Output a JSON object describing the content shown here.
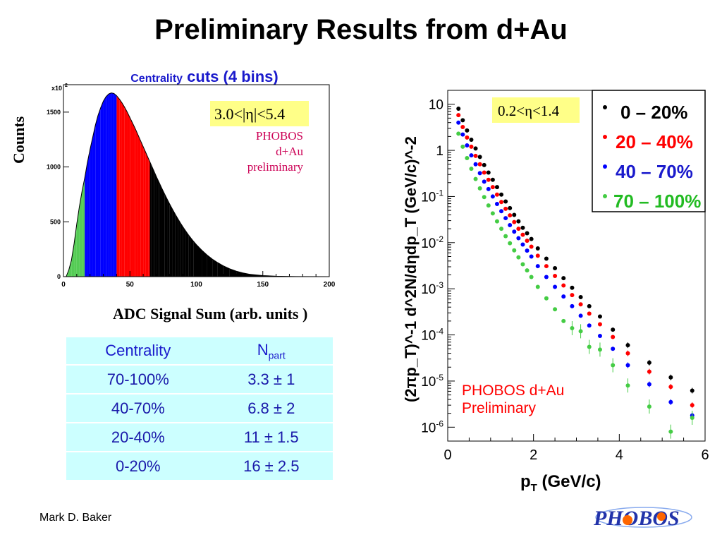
{
  "title": "Preliminary Results from d+Au",
  "histogram": {
    "title_small": "Centrality",
    "title_big": "cuts (4 bins)",
    "ylabel": "Counts",
    "xlabel": "ADC Signal Sum (arb. units )",
    "y_multiplier": "x10",
    "y_multiplier_exp": "2",
    "eta_cut": "3.0<|η|<5.4",
    "note_lines": [
      "PHOBOS",
      "d+Au",
      "preliminary"
    ]
  },
  "table": {
    "headers": [
      "Centrality",
      "N"
    ],
    "header_sub": "part",
    "rows": [
      [
        "70-100%",
        "3.3 ± 1"
      ],
      [
        "40-70%",
        "6.8 ± 2"
      ],
      [
        "20-40%",
        "11 ± 1.5"
      ],
      [
        "0-20%",
        "16 ± 2.5"
      ]
    ]
  },
  "spectrum": {
    "eta_cut": "0.2<η<1.4",
    "watermark": [
      "PHOBOS d+Au",
      "Preliminary"
    ],
    "xlabel": "p",
    "xlabel_sub": "T",
    "xlabel_rest": " (GeV/c)",
    "ylabel": "(2πp_T)^-1 d^2N/dηdp_T (GeV/c)^-2"
  },
  "footer": {
    "author": "Mark D. Baker",
    "logo_text": "PHOBOS"
  },
  "chart_data": [
    {
      "type": "bar",
      "title": "Centrality cuts (4 bins)",
      "xlabel": "ADC Signal Sum (arb. units )",
      "ylabel": "Counts",
      "xlim": [
        0,
        200
      ],
      "ylim": [
        0,
        1750
      ],
      "x_ticks": [
        0,
        50,
        100,
        150,
        200
      ],
      "y_ticks": [
        0,
        500,
        1000,
        1500
      ],
      "bins": [
        {
          "x": 2,
          "y": 0
        },
        {
          "x": 4,
          "y": 60
        },
        {
          "x": 6,
          "y": 150
        },
        {
          "x": 8,
          "y": 300
        },
        {
          "x": 10,
          "y": 480
        },
        {
          "x": 12,
          "y": 640
        },
        {
          "x": 14,
          "y": 780
        },
        {
          "x": 16,
          "y": 900
        },
        {
          "x": 18,
          "y": 1040
        },
        {
          "x": 20,
          "y": 1160
        },
        {
          "x": 22,
          "y": 1270
        },
        {
          "x": 24,
          "y": 1380
        },
        {
          "x": 26,
          "y": 1470
        },
        {
          "x": 28,
          "y": 1540
        },
        {
          "x": 30,
          "y": 1600
        },
        {
          "x": 32,
          "y": 1640
        },
        {
          "x": 34,
          "y": 1665
        },
        {
          "x": 36,
          "y": 1675
        },
        {
          "x": 38,
          "y": 1670
        },
        {
          "x": 40,
          "y": 1650
        },
        {
          "x": 42,
          "y": 1620
        },
        {
          "x": 44,
          "y": 1585
        },
        {
          "x": 46,
          "y": 1545
        },
        {
          "x": 48,
          "y": 1500
        },
        {
          "x": 50,
          "y": 1450
        },
        {
          "x": 52,
          "y": 1400
        },
        {
          "x": 54,
          "y": 1350
        },
        {
          "x": 56,
          "y": 1295
        },
        {
          "x": 58,
          "y": 1240
        },
        {
          "x": 60,
          "y": 1185
        },
        {
          "x": 62,
          "y": 1130
        },
        {
          "x": 64,
          "y": 1075
        },
        {
          "x": 66,
          "y": 1020
        },
        {
          "x": 68,
          "y": 965
        },
        {
          "x": 70,
          "y": 910
        },
        {
          "x": 72,
          "y": 858
        },
        {
          "x": 74,
          "y": 806
        },
        {
          "x": 76,
          "y": 756
        },
        {
          "x": 78,
          "y": 708
        },
        {
          "x": 80,
          "y": 660
        },
        {
          "x": 82,
          "y": 615
        },
        {
          "x": 84,
          "y": 572
        },
        {
          "x": 86,
          "y": 530
        },
        {
          "x": 88,
          "y": 490
        },
        {
          "x": 90,
          "y": 452
        },
        {
          "x": 92,
          "y": 416
        },
        {
          "x": 94,
          "y": 382
        },
        {
          "x": 96,
          "y": 350
        },
        {
          "x": 98,
          "y": 320
        },
        {
          "x": 100,
          "y": 292
        },
        {
          "x": 104,
          "y": 242
        },
        {
          "x": 108,
          "y": 198
        },
        {
          "x": 112,
          "y": 160
        },
        {
          "x": 116,
          "y": 128
        },
        {
          "x": 120,
          "y": 100
        },
        {
          "x": 125,
          "y": 72
        },
        {
          "x": 130,
          "y": 50
        },
        {
          "x": 135,
          "y": 34
        },
        {
          "x": 140,
          "y": 22
        },
        {
          "x": 150,
          "y": 10
        },
        {
          "x": 160,
          "y": 4
        },
        {
          "x": 175,
          "y": 1
        },
        {
          "x": 200,
          "y": 0
        }
      ],
      "bands": [
        {
          "name": "70-100%",
          "x_from": 0,
          "x_to": 16,
          "color": "#55cc55"
        },
        {
          "name": "40-70%",
          "x_from": 16,
          "x_to": 40,
          "color": "#0000ff"
        },
        {
          "name": "20-40%",
          "x_from": 40,
          "x_to": 65,
          "color": "#ff0000"
        },
        {
          "name": "0-20%",
          "x_from": 65,
          "x_to": 200,
          "color": "#000000"
        }
      ],
      "annotations": [
        "3.0<|η|<5.4",
        "PHOBOS",
        "d+Au",
        "preliminary"
      ],
      "legend": "none"
    },
    {
      "type": "scatter",
      "log_y": true,
      "xlim": [
        0,
        6
      ],
      "ylim": [
        5e-07,
        20
      ],
      "x_ticks": [
        0,
        2,
        4,
        6
      ],
      "y_ticks": [
        1e-06,
        1e-05,
        0.0001,
        0.001,
        0.01,
        0.1,
        1,
        10
      ],
      "xlabel": "p_T (GeV/c)",
      "ylabel": "(2πp_T)^-1 d^2N/dηdp_T (GeV/c)^-2",
      "legend_position": "top-right",
      "series": [
        {
          "name": "0 – 20%",
          "color": "#000000",
          "x": [
            0.25,
            0.35,
            0.45,
            0.55,
            0.65,
            0.75,
            0.85,
            0.95,
            1.05,
            1.15,
            1.25,
            1.35,
            1.45,
            1.55,
            1.65,
            1.75,
            1.85,
            1.95,
            2.1,
            2.3,
            2.5,
            2.7,
            2.9,
            3.1,
            3.3,
            3.55,
            3.85,
            4.2,
            4.7,
            5.2,
            5.7
          ],
          "y": [
            8,
            4.5,
            2.7,
            1.7,
            1.1,
            0.72,
            0.48,
            0.33,
            0.23,
            0.16,
            0.11,
            0.078,
            0.056,
            0.04,
            0.029,
            0.021,
            0.016,
            0.012,
            0.0075,
            0.0045,
            0.0028,
            0.0017,
            0.00105,
            0.00066,
            0.00042,
            0.00025,
            0.00013,
            6e-05,
            2.5e-05,
            1.2e-05,
            6.2e-06
          ]
        },
        {
          "name": "20 – 40%",
          "color": "#ff0000",
          "x": [
            0.25,
            0.35,
            0.45,
            0.55,
            0.65,
            0.75,
            0.85,
            0.95,
            1.05,
            1.15,
            1.25,
            1.35,
            1.45,
            1.55,
            1.65,
            1.75,
            1.85,
            1.95,
            2.1,
            2.3,
            2.5,
            2.7,
            2.9,
            3.1,
            3.3,
            3.55,
            3.85,
            4.2,
            4.7,
            5.2,
            5.7
          ],
          "y": [
            5.8,
            3.2,
            1.9,
            1.2,
            0.76,
            0.5,
            0.33,
            0.23,
            0.16,
            0.11,
            0.076,
            0.054,
            0.039,
            0.028,
            0.02,
            0.0148,
            0.011,
            0.0082,
            0.0052,
            0.0031,
            0.0019,
            0.00118,
            0.00073,
            0.00046,
            0.00029,
            0.00017,
            9e-05,
            4e-05,
            1.6e-05,
            7.5e-06,
            3e-06
          ]
        },
        {
          "name": "40 – 70%",
          "color": "#0000ff",
          "x": [
            0.25,
            0.35,
            0.45,
            0.55,
            0.65,
            0.75,
            0.85,
            0.95,
            1.05,
            1.15,
            1.25,
            1.35,
            1.45,
            1.55,
            1.65,
            1.75,
            1.85,
            1.95,
            2.1,
            2.3,
            2.5,
            2.7,
            2.9,
            3.1,
            3.3,
            3.55,
            3.85,
            4.2,
            4.7,
            5.2,
            5.7
          ],
          "y": [
            4.0,
            2.2,
            1.28,
            0.78,
            0.5,
            0.32,
            0.21,
            0.145,
            0.1,
            0.069,
            0.048,
            0.034,
            0.024,
            0.0173,
            0.0125,
            0.0091,
            0.0067,
            0.005,
            0.0031,
            0.0018,
            0.0011,
            0.00068,
            0.00042,
            0.00026,
            0.00016,
            9.5e-05,
            5e-05,
            2.2e-05,
            8.5e-06,
            3.5e-06,
            1.8e-06
          ]
        },
        {
          "name": "70 – 100%",
          "color": "#44cc44",
          "x": [
            0.25,
            0.35,
            0.45,
            0.55,
            0.65,
            0.75,
            0.85,
            0.95,
            1.05,
            1.15,
            1.25,
            1.35,
            1.45,
            1.55,
            1.65,
            1.75,
            1.85,
            1.95,
            2.1,
            2.3,
            2.5,
            2.7,
            2.9,
            3.1,
            3.3,
            3.55,
            3.85,
            4.2,
            4.7,
            5.2,
            5.7
          ],
          "y": [
            2.3,
            1.2,
            0.68,
            0.4,
            0.24,
            0.15,
            0.097,
            0.064,
            0.043,
            0.029,
            0.02,
            0.0138,
            0.0097,
            0.0068,
            0.0048,
            0.0034,
            0.0025,
            0.0018,
            0.0011,
            0.00062,
            0.00036,
            0.0002,
            0.00014,
            0.00012,
            5.5e-05,
            4.8e-05,
            2.2e-05,
            8e-06,
            2.8e-06,
            8e-07,
            1.6e-06
          ]
        }
      ],
      "annotations": [
        "0.2<η<1.4",
        "PHOBOS d+Au",
        "Preliminary"
      ]
    }
  ]
}
